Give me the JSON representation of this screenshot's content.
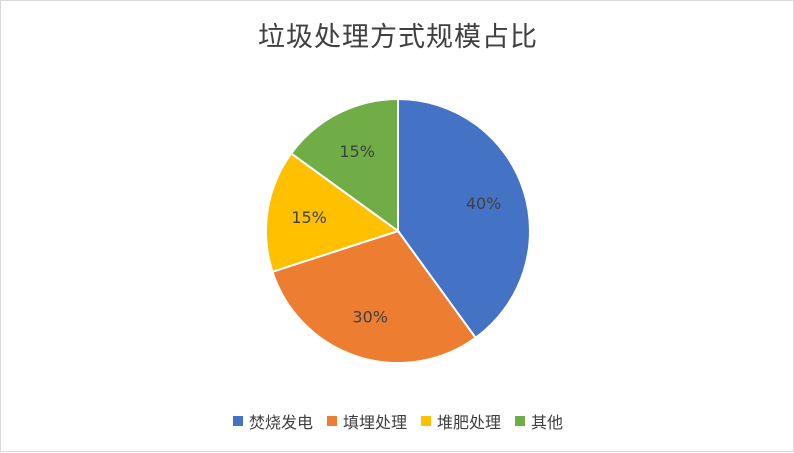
{
  "chart_data": {
    "type": "pie",
    "title": "垃圾处理方式规模占比",
    "categories": [
      "焚烧发电",
      "填埋处理",
      "堆肥处理",
      "其他"
    ],
    "values": [
      40,
      30,
      15,
      15
    ],
    "labels": [
      "40%",
      "30%",
      "15%",
      "15%"
    ],
    "colors": [
      "#4472C4",
      "#ED7D31",
      "#FFC000",
      "#70AD47"
    ],
    "legend_position": "bottom"
  }
}
